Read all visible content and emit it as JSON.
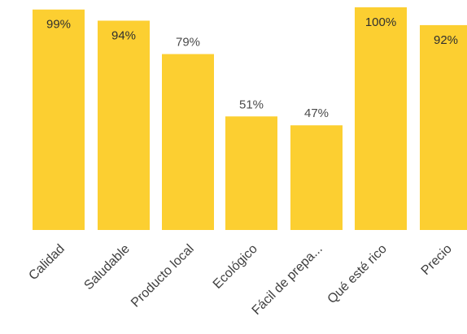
{
  "chart_data": {
    "type": "bar",
    "categories": [
      "Calidad",
      "Saludable",
      "Producto local",
      "Ecológico",
      "Fácil de prepa...",
      "Qué esté rico",
      "Precio"
    ],
    "values": [
      99,
      94,
      79,
      51,
      47,
      100,
      92
    ],
    "value_labels": [
      "99%",
      "94%",
      "79%",
      "51%",
      "47%",
      "100%",
      "92%"
    ],
    "ylim": [
      0,
      100
    ],
    "grid": false,
    "legend": "none",
    "colors": {
      "bar": "#FCCF31"
    }
  }
}
